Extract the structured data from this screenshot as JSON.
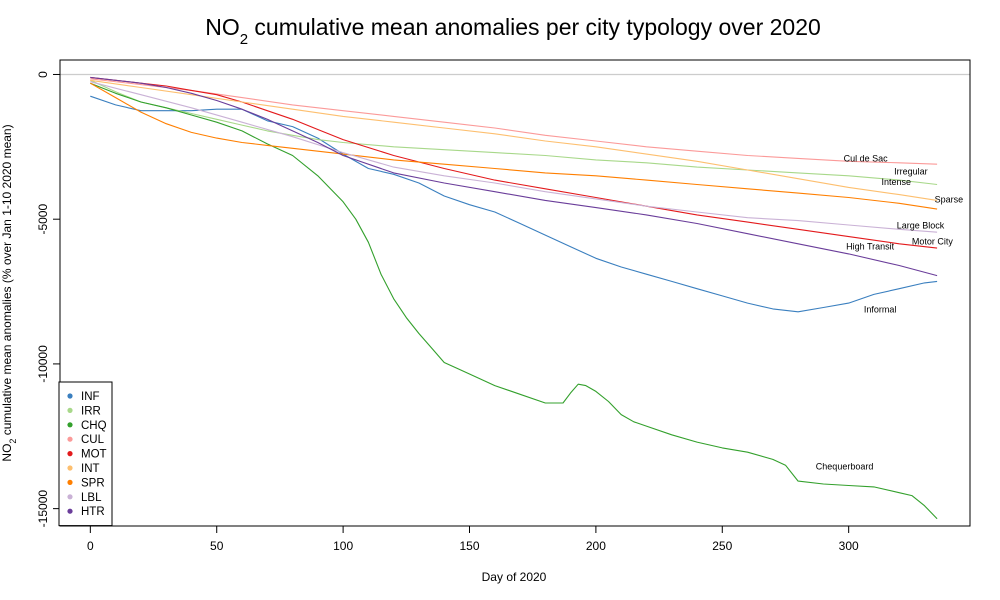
{
  "chart_data": {
    "type": "line",
    "title": {
      "prefix": "NO",
      "sub": "2",
      "suffix": " cumulative mean anomalies per city typology over 2020"
    },
    "xlabel": "Day of 2020",
    "ylabel": {
      "prefix": "NO",
      "sub": "2",
      "suffix": " cumulative mean anomalies (% over Jan 1-10 2020 mean)"
    },
    "xlim": [
      -12,
      348
    ],
    "ylim": [
      -15600,
      500
    ],
    "xticks": [
      0,
      50,
      100,
      150,
      200,
      250,
      300
    ],
    "yticks": [
      0,
      -5000,
      -10000,
      -15000
    ],
    "reference_line": 0,
    "legend_position": "bottom-left",
    "series": [
      {
        "name": "INF",
        "label": "Informal",
        "color": "#3A7FBF",
        "x": [
          0,
          10,
          20,
          30,
          40,
          50,
          60,
          70,
          80,
          90,
          100,
          110,
          120,
          130,
          140,
          150,
          160,
          170,
          180,
          190,
          200,
          210,
          220,
          230,
          240,
          250,
          260,
          270,
          280,
          290,
          300,
          310,
          320,
          330,
          335
        ],
        "y": [
          -750,
          -1050,
          -1250,
          -1250,
          -1250,
          -1200,
          -1200,
          -1600,
          -1800,
          -2200,
          -2750,
          -3250,
          -3450,
          -3750,
          -4200,
          -4500,
          -4750,
          -5150,
          -5550,
          -5950,
          -6350,
          -6650,
          -6900,
          -7150,
          -7400,
          -7650,
          -7900,
          -8100,
          -8200,
          -8050,
          -7900,
          -7600,
          -7400,
          -7200,
          -7150
        ]
      },
      {
        "name": "IRR",
        "label": "Irregular",
        "color": "#A8D88A",
        "x": [
          0,
          10,
          20,
          30,
          40,
          50,
          60,
          70,
          80,
          90,
          100,
          120,
          140,
          160,
          180,
          200,
          220,
          240,
          260,
          280,
          300,
          320,
          335
        ],
        "y": [
          -200,
          -600,
          -950,
          -1150,
          -1350,
          -1550,
          -1750,
          -1950,
          -2100,
          -2250,
          -2350,
          -2500,
          -2600,
          -2700,
          -2800,
          -2950,
          -3050,
          -3200,
          -3300,
          -3400,
          -3500,
          -3650,
          -3800
        ]
      },
      {
        "name": "CHQ",
        "label": "Chequerboard",
        "color": "#33A02C",
        "x": [
          0,
          10,
          20,
          30,
          40,
          50,
          60,
          70,
          80,
          90,
          100,
          105,
          110,
          115,
          120,
          125,
          130,
          135,
          140,
          145,
          150,
          160,
          170,
          180,
          187,
          190,
          193,
          196,
          200,
          205,
          210,
          215,
          220,
          230,
          240,
          250,
          260,
          270,
          275,
          280,
          290,
          300,
          310,
          320,
          325,
          330,
          335
        ],
        "y": [
          -300,
          -650,
          -950,
          -1150,
          -1400,
          -1650,
          -1950,
          -2400,
          -2800,
          -3500,
          -4400,
          -5000,
          -5800,
          -6900,
          -7750,
          -8400,
          -8950,
          -9450,
          -9950,
          -10150,
          -10350,
          -10750,
          -11050,
          -11350,
          -11350,
          -11000,
          -10700,
          -10750,
          -10950,
          -11300,
          -11750,
          -12000,
          -12150,
          -12450,
          -12700,
          -12900,
          -13050,
          -13300,
          -13500,
          -14050,
          -14150,
          -14200,
          -14250,
          -14450,
          -14550,
          -14900,
          -15350
        ]
      },
      {
        "name": "CUL",
        "label": "Cul de Sac",
        "color": "#FB9A99",
        "x": [
          0,
          20,
          40,
          60,
          80,
          100,
          120,
          140,
          160,
          180,
          200,
          220,
          240,
          260,
          280,
          300,
          320,
          335
        ],
        "y": [
          -150,
          -350,
          -550,
          -800,
          -1050,
          -1250,
          -1450,
          -1650,
          -1850,
          -2100,
          -2300,
          -2500,
          -2650,
          -2800,
          -2900,
          -3000,
          -3050,
          -3100
        ]
      },
      {
        "name": "MOT",
        "label": "Motor City",
        "color": "#E31A1C",
        "x": [
          0,
          10,
          20,
          30,
          40,
          50,
          60,
          70,
          80,
          90,
          100,
          120,
          140,
          160,
          180,
          200,
          220,
          240,
          260,
          280,
          300,
          320,
          335
        ],
        "y": [
          -100,
          -200,
          -300,
          -400,
          -550,
          -700,
          -950,
          -1250,
          -1550,
          -1900,
          -2250,
          -2800,
          -3250,
          -3650,
          -3950,
          -4250,
          -4550,
          -4850,
          -5100,
          -5350,
          -5600,
          -5850,
          -6000
        ]
      },
      {
        "name": "INT",
        "label": "Intense",
        "color": "#FDBF6F",
        "x": [
          0,
          20,
          40,
          60,
          80,
          100,
          120,
          140,
          160,
          180,
          200,
          220,
          240,
          260,
          280,
          300,
          320,
          335
        ],
        "y": [
          -200,
          -450,
          -700,
          -950,
          -1200,
          -1450,
          -1650,
          -1850,
          -2050,
          -2300,
          -2500,
          -2750,
          -3000,
          -3300,
          -3600,
          -3900,
          -4150,
          -4350
        ]
      },
      {
        "name": "SPR",
        "label": "Sparse",
        "color": "#FF7F00",
        "x": [
          0,
          10,
          20,
          30,
          40,
          50,
          60,
          70,
          80,
          100,
          120,
          140,
          160,
          180,
          200,
          220,
          240,
          260,
          280,
          300,
          320,
          335
        ],
        "y": [
          -300,
          -800,
          -1300,
          -1700,
          -2000,
          -2200,
          -2350,
          -2450,
          -2550,
          -2750,
          -2950,
          -3100,
          -3250,
          -3400,
          -3500,
          -3650,
          -3800,
          -3950,
          -4100,
          -4250,
          -4450,
          -4650
        ]
      },
      {
        "name": "LBL",
        "label": "Large Block",
        "color": "#CAB2D6",
        "x": [
          0,
          20,
          40,
          60,
          80,
          100,
          120,
          140,
          160,
          180,
          200,
          220,
          240,
          260,
          280,
          300,
          320,
          335
        ],
        "y": [
          -250,
          -700,
          -1150,
          -1650,
          -2150,
          -2700,
          -3200,
          -3500,
          -3750,
          -4050,
          -4300,
          -4550,
          -4750,
          -4950,
          -5050,
          -5200,
          -5350,
          -5450
        ]
      },
      {
        "name": "HTR",
        "label": "High Transit",
        "color": "#6A3D9A",
        "x": [
          0,
          10,
          20,
          30,
          40,
          50,
          60,
          70,
          80,
          90,
          100,
          120,
          140,
          160,
          180,
          200,
          220,
          240,
          260,
          280,
          300,
          320,
          335
        ],
        "y": [
          -100,
          -200,
          -300,
          -450,
          -650,
          -900,
          -1200,
          -1550,
          -1950,
          -2350,
          -2800,
          -3400,
          -3750,
          -4050,
          -4350,
          -4600,
          -4850,
          -5150,
          -5500,
          -5850,
          -6200,
          -6600,
          -6950
        ]
      }
    ],
    "annotations": [
      {
        "text": "Cul de Sac",
        "x": 298,
        "y": -3000
      },
      {
        "text": "Irregular",
        "x": 318,
        "y": -3450
      },
      {
        "text": "Intense",
        "x": 313,
        "y": -3820
      },
      {
        "text": "Sparse",
        "x": 334,
        "y": -4420
      },
      {
        "text": "Large Block",
        "x": 319,
        "y": -5320
      },
      {
        "text": "Motor City",
        "x": 325,
        "y": -5880
      },
      {
        "text": "High Transit",
        "x": 299,
        "y": -6040
      },
      {
        "text": "Informal",
        "x": 306,
        "y": -8230
      },
      {
        "text": "Chequerboard",
        "x": 287,
        "y": -13650
      }
    ]
  }
}
